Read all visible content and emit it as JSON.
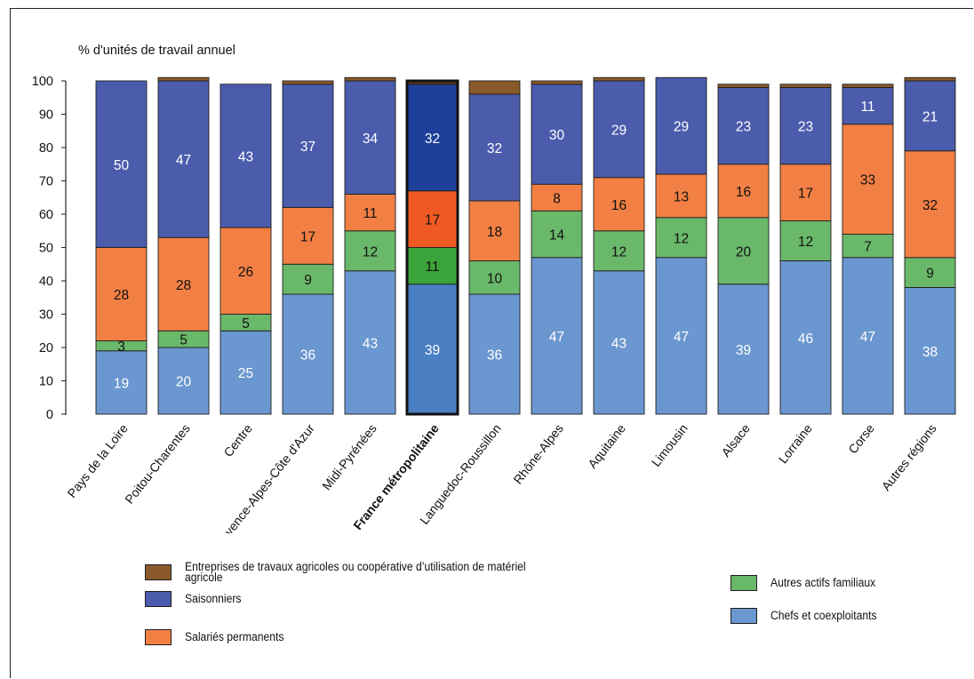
{
  "chart_data": {
    "type": "bar",
    "stacked": true,
    "ylabel": "% d'unités de travail annuel",
    "ylim": [
      0,
      100
    ],
    "yticks": [
      0,
      10,
      20,
      30,
      40,
      50,
      60,
      70,
      80,
      90,
      100
    ],
    "highlight_category": "France métropolitaine",
    "categories": [
      "Pays de la Loire",
      "Poitou-Charentes",
      "Centre",
      "Provence-Alpes-Côte d'Azur",
      "Midi-Pyrénées",
      "France métropolitaine",
      "Languedoc-Roussillon",
      "Rhône-Alpes",
      "Aquitaine",
      "Limousin",
      "Alsace",
      "Lorraine",
      "Corse",
      "Autres régions"
    ],
    "series": [
      {
        "name": "Chefs et coexploitants",
        "color": "#6b97d0",
        "highlight_color": "#4a7fc4",
        "values": [
          19,
          20,
          25,
          36,
          43,
          39,
          36,
          47,
          43,
          47,
          39,
          46,
          47,
          38
        ],
        "labels": [
          "19",
          "20",
          "25",
          "36",
          "43",
          "39",
          "36",
          "47",
          "43",
          "47",
          "39",
          "46",
          "47",
          "38"
        ]
      },
      {
        "name": "Autres actifs familiaux",
        "color": "#6ab86a",
        "highlight_color": "#3aa43a",
        "values": [
          3,
          5,
          5,
          9,
          12,
          11,
          10,
          14,
          12,
          12,
          20,
          12,
          7,
          9
        ],
        "labels": [
          "3",
          "5",
          "5",
          "9",
          "12",
          "11",
          "10",
          "14",
          "12",
          "12",
          "20",
          "12",
          "7",
          "9"
        ]
      },
      {
        "name": "Salariés permanents",
        "color": "#f28044",
        "highlight_color": "#f05a22",
        "values": [
          28,
          28,
          26,
          17,
          11,
          17,
          18,
          8,
          16,
          13,
          16,
          17,
          33,
          32
        ],
        "labels": [
          "28",
          "28",
          "26",
          "17",
          "11",
          "17",
          "18",
          "8",
          "16",
          "13",
          "16",
          "17",
          "33",
          "32"
        ]
      },
      {
        "name": "Saisonniers",
        "color": "#4b5cad",
        "highlight_color": "#1e3f9a",
        "values": [
          50,
          47,
          43,
          37,
          34,
          32,
          32,
          30,
          29,
          29,
          23,
          23,
          11,
          21
        ],
        "labels": [
          "50",
          "47",
          "43",
          "37",
          "34",
          "32",
          "32",
          "30",
          "29",
          "29",
          "23",
          "23",
          "11",
          "21"
        ]
      },
      {
        "name": "Entreprises de travaux agricoles ou coopérative d’utilisation de matériel agricole",
        "color": "#8b5a2b",
        "highlight_color": "#5a3a1a",
        "values": [
          0,
          1,
          0,
          1,
          1,
          1,
          4,
          1,
          1,
          0,
          1,
          1,
          1,
          1
        ],
        "labels": [
          "",
          "",
          "",
          "",
          "",
          "",
          "",
          "",
          "",
          "",
          "",
          "",
          "",
          ""
        ]
      }
    ],
    "legend": [
      {
        "label": "Entreprises de travaux agricoles ou coopérative d’utilisation de matériel agricole",
        "color": "#8b5a2b"
      },
      {
        "label": "Saisonniers",
        "color": "#4b5cad"
      },
      {
        "label": "Salariés permanents",
        "color": "#f28044"
      },
      {
        "label": "Autres actifs familiaux",
        "color": "#6ab86a"
      },
      {
        "label": "Chefs et coexploitants",
        "color": "#6b97d0"
      }
    ]
  }
}
